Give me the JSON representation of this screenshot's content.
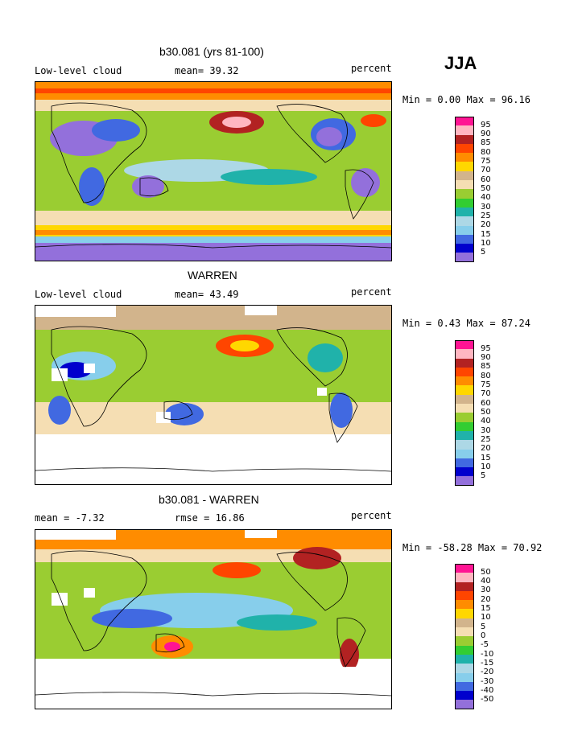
{
  "season": "JJA",
  "panels": [
    {
      "title": "b30.081 (yrs 81-100)",
      "left_label": "Low-level cloud",
      "stat_label": "mean=  39.32",
      "units": "percent",
      "minmax": "Min =   0.00 Max =  96.16",
      "legend_ticks": [
        "95",
        "90",
        "85",
        "80",
        "75",
        "70",
        "60",
        "50",
        "40",
        "30",
        "25",
        "20",
        "15",
        "10",
        "5"
      ]
    },
    {
      "title": "WARREN",
      "left_label": "Low-level cloud",
      "stat_label": "mean=  43.49",
      "units": "percent",
      "minmax": "Min =   0.43 Max =  87.24",
      "legend_ticks": [
        "95",
        "90",
        "85",
        "80",
        "75",
        "70",
        "60",
        "50",
        "40",
        "30",
        "25",
        "20",
        "15",
        "10",
        "5"
      ]
    },
    {
      "title": "b30.081 - WARREN",
      "left_label": "mean =  -7.32",
      "stat_label": "rmse =  16.86",
      "units": "percent",
      "minmax": "Min = -58.28 Max =  70.92",
      "legend_ticks": [
        "50",
        "40",
        "30",
        "20",
        "15",
        "10",
        "5",
        "0",
        "-5",
        "-10",
        "-15",
        "-20",
        "-30",
        "-40",
        "-50"
      ]
    }
  ],
  "colors": {
    "scale": [
      "#ff1493",
      "#ffb6c1",
      "#b22222",
      "#ff4500",
      "#ff8c00",
      "#ffd700",
      "#d2b48c",
      "#f5deb3",
      "#9acd32",
      "#32cd32",
      "#20b2aa",
      "#add8e6",
      "#87ceeb",
      "#4169e1",
      "#0000cd",
      "#9370db"
    ]
  }
}
